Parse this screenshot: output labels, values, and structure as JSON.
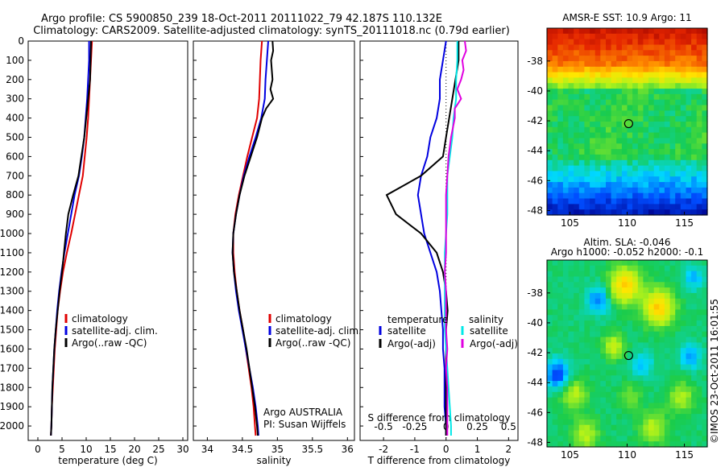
{
  "header": {
    "line1": "Argo profile: CS 5900850_239 18-Oct-2011 20111022_79 42.187S 110.132E",
    "line2": "Climatology: CARS2009. Satellite-adjusted climatology: synTS_20111018.nc (0.79d earlier)"
  },
  "colors": {
    "climatology": "#e00000",
    "satellite": "#0000e0",
    "argo": "#000000",
    "sal_satellite": "#00e8e8",
    "sal_argo": "#e000e0",
    "marker": "#000000"
  },
  "chart_data": [
    {
      "type": "line",
      "xlabel": "temperature (deg C)",
      "ylabel": "",
      "xlim": [
        -2,
        31
      ],
      "ylim": [
        2075,
        0
      ],
      "x_ticks": [
        "0",
        "5",
        "10",
        "15",
        "20",
        "25",
        "30"
      ],
      "y_ticks": [
        "0",
        "100",
        "200",
        "300",
        "400",
        "500",
        "600",
        "700",
        "800",
        "900",
        "1000",
        "1100",
        "1200",
        "1300",
        "1400",
        "1500",
        "1600",
        "1700",
        "1800",
        "1900",
        "2000"
      ],
      "legend": [
        "climatology",
        "satellite-adj. clim.",
        "Argo(..raw -QC)"
      ],
      "series": [
        {
          "name": "climatology",
          "points": [
            [
              11.2,
              0
            ],
            [
              11.0,
              100
            ],
            [
              10.8,
              200
            ],
            [
              10.6,
              300
            ],
            [
              10.4,
              400
            ],
            [
              10.1,
              500
            ],
            [
              9.7,
              600
            ],
            [
              9.3,
              700
            ],
            [
              8.5,
              800
            ],
            [
              7.7,
              900
            ],
            [
              6.9,
              1000
            ],
            [
              6.0,
              1100
            ],
            [
              5.2,
              1200
            ],
            [
              4.6,
              1300
            ],
            [
              4.1,
              1400
            ],
            [
              3.8,
              1500
            ],
            [
              3.5,
              1600
            ],
            [
              3.3,
              1700
            ],
            [
              3.1,
              1800
            ],
            [
              2.9,
              1900
            ],
            [
              2.8,
              2000
            ],
            [
              2.7,
              2050
            ]
          ]
        },
        {
          "name": "satellite-adj. clim.",
          "points": [
            [
              10.6,
              0
            ],
            [
              10.6,
              100
            ],
            [
              10.4,
              200
            ],
            [
              10.2,
              300
            ],
            [
              9.9,
              400
            ],
            [
              9.6,
              500
            ],
            [
              9.1,
              600
            ],
            [
              8.5,
              700
            ],
            [
              7.6,
              800
            ],
            [
              6.9,
              900
            ],
            [
              6.2,
              1000
            ],
            [
              5.5,
              1100
            ],
            [
              4.9,
              1200
            ],
            [
              4.4,
              1300
            ],
            [
              4.0,
              1400
            ],
            [
              3.7,
              1500
            ],
            [
              3.4,
              1600
            ],
            [
              3.2,
              1700
            ],
            [
              3.0,
              1800
            ],
            [
              2.9,
              1900
            ],
            [
              2.8,
              2000
            ],
            [
              2.7,
              2050
            ]
          ]
        },
        {
          "name": "Argo(..raw -QC)",
          "points": [
            [
              11.0,
              0
            ],
            [
              10.9,
              100
            ],
            [
              10.8,
              200
            ],
            [
              10.4,
              300
            ],
            [
              10.0,
              400
            ],
            [
              9.6,
              500
            ],
            [
              9.0,
              600
            ],
            [
              8.4,
              700
            ],
            [
              7.3,
              800
            ],
            [
              6.3,
              900
            ],
            [
              5.8,
              1000
            ],
            [
              5.4,
              1100
            ],
            [
              5.0,
              1200
            ],
            [
              4.5,
              1300
            ],
            [
              4.1,
              1400
            ],
            [
              3.7,
              1500
            ],
            [
              3.4,
              1600
            ],
            [
              3.2,
              1700
            ],
            [
              3.0,
              1800
            ],
            [
              2.9,
              1900
            ],
            [
              2.8,
              2000
            ],
            [
              2.7,
              2050
            ]
          ]
        }
      ]
    },
    {
      "type": "line",
      "xlabel": "salinity",
      "xlim": [
        33.8,
        36.1
      ],
      "ylim": [
        2075,
        0
      ],
      "x_ticks": [
        "34",
        "34.5",
        "35",
        "35.5",
        "36"
      ],
      "legend": [
        "climatology",
        "satellite-adj. clim.",
        "Argo(..raw -QC)"
      ],
      "annotations": [
        "Argo AUSTRALIA",
        "PI: Susan Wijffels"
      ],
      "series": [
        {
          "name": "climatology",
          "points": [
            [
              34.78,
              0
            ],
            [
              34.76,
              100
            ],
            [
              34.75,
              200
            ],
            [
              34.74,
              300
            ],
            [
              34.71,
              400
            ],
            [
              34.64,
              500
            ],
            [
              34.57,
              600
            ],
            [
              34.51,
              700
            ],
            [
              34.45,
              800
            ],
            [
              34.4,
              900
            ],
            [
              34.37,
              1000
            ],
            [
              34.37,
              1100
            ],
            [
              34.39,
              1200
            ],
            [
              34.42,
              1300
            ],
            [
              34.46,
              1400
            ],
            [
              34.51,
              1500
            ],
            [
              34.55,
              1600
            ],
            [
              34.59,
              1700
            ],
            [
              34.63,
              1800
            ],
            [
              34.66,
              1900
            ],
            [
              34.68,
              2000
            ],
            [
              34.69,
              2050
            ]
          ]
        },
        {
          "name": "satellite-adj. clim.",
          "points": [
            [
              34.87,
              0
            ],
            [
              34.85,
              100
            ],
            [
              34.83,
              200
            ],
            [
              34.82,
              300
            ],
            [
              34.77,
              400
            ],
            [
              34.69,
              500
            ],
            [
              34.6,
              600
            ],
            [
              34.52,
              700
            ],
            [
              34.46,
              800
            ],
            [
              34.41,
              900
            ],
            [
              34.37,
              1000
            ],
            [
              34.36,
              1100
            ],
            [
              34.38,
              1200
            ],
            [
              34.41,
              1300
            ],
            [
              34.45,
              1400
            ],
            [
              34.5,
              1500
            ],
            [
              34.55,
              1600
            ],
            [
              34.6,
              1700
            ],
            [
              34.65,
              1800
            ],
            [
              34.69,
              1900
            ],
            [
              34.72,
              2000
            ],
            [
              34.73,
              2050
            ]
          ]
        },
        {
          "name": "Argo(..raw -QC)",
          "points": [
            [
              34.93,
              0
            ],
            [
              34.94,
              50
            ],
            [
              34.91,
              100
            ],
            [
              34.92,
              150
            ],
            [
              34.93,
              200
            ],
            [
              34.9,
              250
            ],
            [
              34.94,
              300
            ],
            [
              34.84,
              350
            ],
            [
              34.78,
              400
            ],
            [
              34.71,
              500
            ],
            [
              34.62,
              600
            ],
            [
              34.53,
              700
            ],
            [
              34.46,
              800
            ],
            [
              34.41,
              900
            ],
            [
              34.37,
              1000
            ],
            [
              34.36,
              1100
            ],
            [
              34.38,
              1200
            ],
            [
              34.42,
              1300
            ],
            [
              34.46,
              1400
            ],
            [
              34.51,
              1500
            ],
            [
              34.56,
              1600
            ],
            [
              34.6,
              1700
            ],
            [
              34.64,
              1800
            ],
            [
              34.68,
              1900
            ],
            [
              34.71,
              2000
            ],
            [
              34.72,
              2050
            ]
          ]
        }
      ]
    },
    {
      "type": "line",
      "xlabel": "T difference from climatology",
      "top_label": "S difference from climatology",
      "xlim": [
        -2.75,
        2.3
      ],
      "ylim": [
        2075,
        0
      ],
      "x_ticks": [
        "-2",
        "-1",
        "0",
        "1",
        "2"
      ],
      "top_ticks": [
        "-0.5",
        "-0.25",
        "0",
        "0.25",
        "0.5"
      ],
      "legend_headers": [
        "temperature",
        "salinity"
      ],
      "legend": [
        "satellite",
        "Argo(-adj)",
        "satellite",
        "Argo(-adj)"
      ],
      "series": [
        {
          "name": "satellite",
          "quantity": "T",
          "points": [
            [
              0.0,
              0
            ],
            [
              -0.1,
              100
            ],
            [
              -0.2,
              200
            ],
            [
              -0.2,
              300
            ],
            [
              -0.3,
              400
            ],
            [
              -0.5,
              500
            ],
            [
              -0.6,
              600
            ],
            [
              -0.8,
              700
            ],
            [
              -0.9,
              800
            ],
            [
              -0.8,
              900
            ],
            [
              -0.7,
              1000
            ],
            [
              -0.5,
              1100
            ],
            [
              -0.3,
              1200
            ],
            [
              -0.2,
              1300
            ],
            [
              -0.15,
              1400
            ],
            [
              -0.1,
              1500
            ],
            [
              -0.1,
              1600
            ],
            [
              -0.05,
              1700
            ],
            [
              -0.05,
              1800
            ],
            [
              -0.05,
              1900
            ],
            [
              0.0,
              2000
            ],
            [
              0.0,
              2050
            ]
          ]
        },
        {
          "name": "Argo(-adj)",
          "quantity": "T",
          "points": [
            [
              0.4,
              0
            ],
            [
              0.4,
              100
            ],
            [
              0.3,
              200
            ],
            [
              0.2,
              300
            ],
            [
              0.1,
              400
            ],
            [
              0.0,
              500
            ],
            [
              -0.1,
              600
            ],
            [
              -0.8,
              700
            ],
            [
              -1.9,
              800
            ],
            [
              -1.6,
              900
            ],
            [
              -0.8,
              1000
            ],
            [
              -0.3,
              1100
            ],
            [
              -0.1,
              1200
            ],
            [
              0.0,
              1300
            ],
            [
              0.05,
              1400
            ],
            [
              0.0,
              1500
            ],
            [
              0.0,
              1600
            ],
            [
              0.0,
              1700
            ],
            [
              0.0,
              1800
            ],
            [
              0.0,
              1900
            ],
            [
              0.0,
              2000
            ],
            [
              0.0,
              2050
            ]
          ]
        },
        {
          "name": "satellite",
          "quantity": "S",
          "points": [
            [
              0.09,
              0
            ],
            [
              0.09,
              100
            ],
            [
              0.08,
              200
            ],
            [
              0.08,
              300
            ],
            [
              0.06,
              400
            ],
            [
              0.05,
              500
            ],
            [
              0.03,
              600
            ],
            [
              0.01,
              700
            ],
            [
              0.01,
              800
            ],
            [
              0.01,
              900
            ],
            [
              0.0,
              1000
            ],
            [
              -0.01,
              1100
            ],
            [
              -0.01,
              1200
            ],
            [
              -0.01,
              1300
            ],
            [
              -0.01,
              1400
            ],
            [
              -0.01,
              1500
            ],
            [
              0.0,
              1600
            ],
            [
              0.01,
              1700
            ],
            [
              0.02,
              1800
            ],
            [
              0.03,
              1900
            ],
            [
              0.04,
              2000
            ],
            [
              0.04,
              2050
            ]
          ]
        },
        {
          "name": "Argo(-adj)",
          "quantity": "S",
          "points": [
            [
              0.15,
              0
            ],
            [
              0.16,
              50
            ],
            [
              0.13,
              100
            ],
            [
              0.14,
              150
            ],
            [
              0.12,
              200
            ],
            [
              0.09,
              250
            ],
            [
              0.12,
              300
            ],
            [
              0.07,
              350
            ],
            [
              0.07,
              400
            ],
            [
              0.04,
              500
            ],
            [
              0.02,
              600
            ],
            [
              0.01,
              700
            ],
            [
              0.0,
              800
            ],
            [
              0.0,
              900
            ],
            [
              0.0,
              1000
            ],
            [
              0.0,
              1100
            ],
            [
              -0.01,
              1200
            ],
            [
              0.0,
              1300
            ],
            [
              0.0,
              1400
            ],
            [
              0.0,
              1500
            ],
            [
              0.01,
              1600
            ],
            [
              0.0,
              1700
            ],
            [
              0.01,
              1800
            ],
            [
              0.01,
              1900
            ],
            [
              0.01,
              2000
            ],
            [
              0.01,
              2050
            ]
          ]
        }
      ]
    },
    {
      "type": "heatmap",
      "title": "AMSR-E SST: 10.9  Argo: 11",
      "xlim": [
        103,
        117
      ],
      "ylim": [
        -48.3,
        -35.8
      ],
      "x_ticks": [
        "105",
        "110",
        "115"
      ],
      "y_ticks": [
        "-38",
        "-40",
        "-42",
        "-44",
        "-46",
        "-48"
      ],
      "marker": [
        110.132,
        -42.187
      ]
    },
    {
      "type": "heatmap",
      "title": "Altim. SLA: -0.046",
      "subtitle": "Argo h1000: -0.052  h2000: -0.1",
      "side_label": "©IMOS 23-Oct-2011 16:01:55",
      "xlim": [
        103,
        117
      ],
      "ylim": [
        -48.3,
        -35.8
      ],
      "x_ticks": [
        "105",
        "110",
        "115"
      ],
      "y_ticks": [
        "-38",
        "-40",
        "-42",
        "-44",
        "-46",
        "-48"
      ],
      "marker": [
        110.132,
        -42.187
      ]
    }
  ]
}
